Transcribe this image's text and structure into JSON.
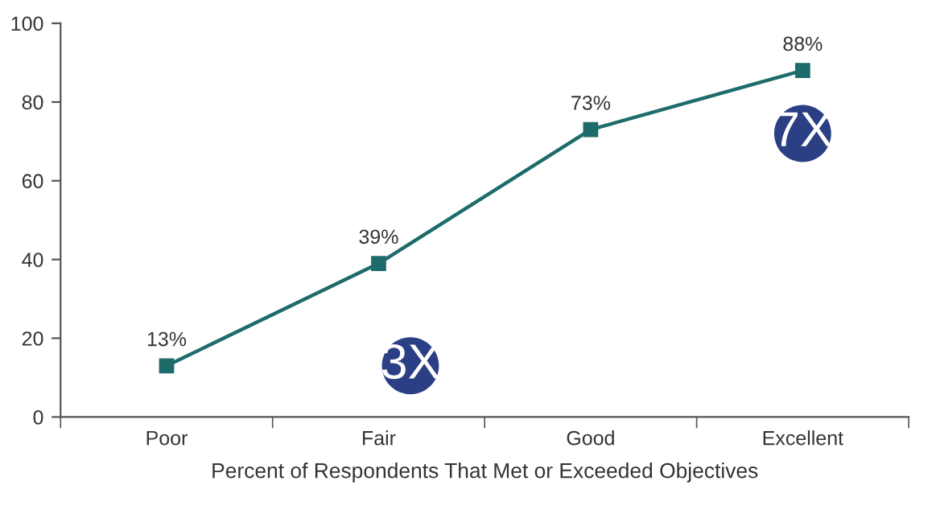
{
  "chart_data": {
    "type": "line",
    "xlabel": "Percent of Respondents That Met or Exceeded Objectives",
    "categories": [
      "Poor",
      "Fair",
      "Good",
      "Excellent"
    ],
    "series": [
      {
        "color": "#1e6b6b",
        "values": [
          13,
          39,
          73,
          88
        ],
        "value_labels": [
          "13%",
          "39%",
          "73%",
          "88%"
        ]
      }
    ],
    "ylim": [
      0,
      100
    ],
    "yticks": [
      0,
      20,
      40,
      60,
      80,
      100
    ],
    "grid": false,
    "legend": false,
    "marker": "square",
    "line_style": "solid",
    "annotations": [
      "3X",
      "7X"
    ]
  }
}
